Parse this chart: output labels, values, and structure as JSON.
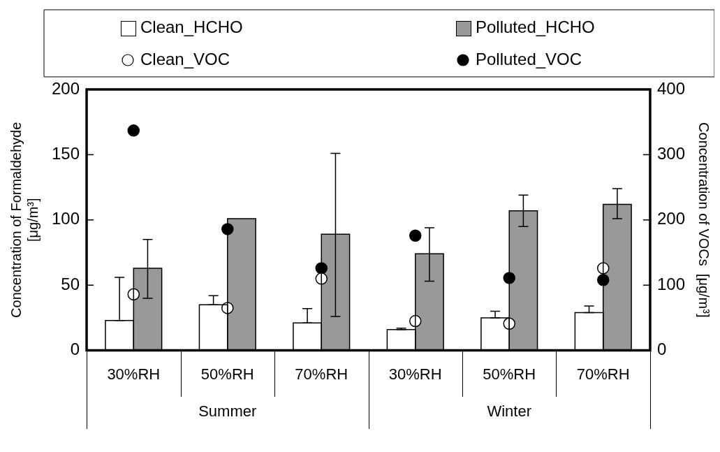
{
  "chart_data": {
    "type": "bar",
    "categories": [
      "30%RH",
      "50%RH",
      "70%RH",
      "30%RH",
      "50%RH",
      "70%RH"
    ],
    "series": [
      {
        "name": "Clean_HCHO",
        "color": "#ffffff",
        "values": [
          23,
          35,
          21,
          16,
          25,
          29
        ],
        "errors": [
          [
            23,
            56
          ],
          [
            35,
            42
          ],
          [
            21,
            32
          ],
          [
            16,
            17
          ],
          [
            25,
            30
          ],
          [
            29,
            34
          ]
        ]
      },
      {
        "name": "Polluted_HCHO",
        "color": "#999999",
        "values": [
          63,
          101,
          89,
          74,
          107,
          112
        ],
        "errors": [
          [
            40,
            85
          ],
          null,
          [
            26,
            151
          ],
          [
            53,
            94
          ],
          [
            95,
            119
          ],
          [
            101,
            124
          ]
        ]
      },
      {
        "name": "Clean_VOC",
        "type": "scatter",
        "axis": "y2",
        "color": "#ffffff",
        "values": [
          86,
          65,
          110,
          45,
          41,
          126
        ]
      },
      {
        "name": "Polluted_VOC",
        "type": "scatter",
        "axis": "y2",
        "color": "#000000",
        "values": [
          337,
          186,
          126,
          176,
          111,
          108
        ]
      }
    ],
    "ylabel": "Concentration of Formaldehyde\n[μg/m³]",
    "y2label": "Concentration of VOCs  [μg/m³]",
    "ylim": [
      0,
      200
    ],
    "yticks": [
      0,
      50,
      100,
      150,
      200
    ],
    "y2lim": [
      0,
      400
    ],
    "y2ticks": [
      0,
      100,
      200,
      300,
      400
    ],
    "annotations": [
      "Summer",
      "Winter"
    ],
    "legend": "top",
    "marker": "circle",
    "grid": false
  }
}
